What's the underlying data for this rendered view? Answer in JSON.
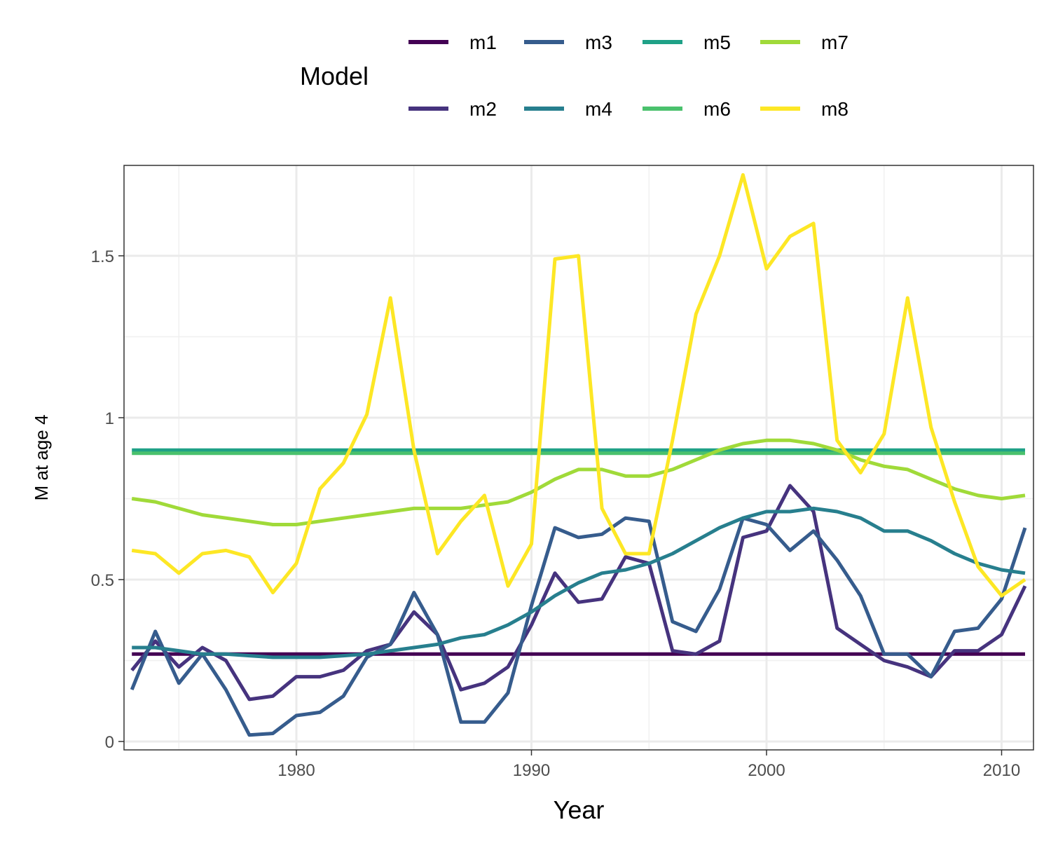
{
  "chart_data": {
    "type": "line",
    "xlabel": "Year",
    "ylabel": "M at age 4",
    "xlim": [
      1973,
      2011
    ],
    "ylim": [
      0,
      1.75
    ],
    "x_ticks": [
      1980,
      1990,
      2000,
      2010
    ],
    "y_ticks": [
      0,
      0.5,
      1,
      1.5
    ],
    "x_tick_labels": [
      "1980",
      "1990",
      "2000",
      "2010"
    ],
    "y_tick_labels": [
      "0",
      "0.5",
      "1",
      "1.5"
    ],
    "grid": true,
    "legend": {
      "title": "Model",
      "position": "top"
    },
    "x": [
      1973,
      1974,
      1975,
      1976,
      1977,
      1978,
      1979,
      1980,
      1981,
      1982,
      1983,
      1984,
      1985,
      1986,
      1987,
      1988,
      1989,
      1990,
      1991,
      1992,
      1993,
      1994,
      1995,
      1996,
      1997,
      1998,
      1999,
      2000,
      2001,
      2002,
      2003,
      2004,
      2005,
      2006,
      2007,
      2008,
      2009,
      2010,
      2011
    ],
    "series": [
      {
        "name": "m1",
        "color": "#440154",
        "values": [
          0.27,
          0.27,
          0.27,
          0.27,
          0.27,
          0.27,
          0.27,
          0.27,
          0.27,
          0.27,
          0.27,
          0.27,
          0.27,
          0.27,
          0.27,
          0.27,
          0.27,
          0.27,
          0.27,
          0.27,
          0.27,
          0.27,
          0.27,
          0.27,
          0.27,
          0.27,
          0.27,
          0.27,
          0.27,
          0.27,
          0.27,
          0.27,
          0.27,
          0.27,
          0.27,
          0.27,
          0.27,
          0.27,
          0.27
        ]
      },
      {
        "name": "m2",
        "color": "#46337E",
        "values": [
          0.22,
          0.31,
          0.23,
          0.29,
          0.25,
          0.13,
          0.14,
          0.2,
          0.2,
          0.22,
          0.28,
          0.3,
          0.4,
          0.33,
          0.16,
          0.18,
          0.23,
          0.36,
          0.52,
          0.43,
          0.44,
          0.57,
          0.55,
          0.28,
          0.27,
          0.31,
          0.63,
          0.65,
          0.79,
          0.71,
          0.35,
          0.3,
          0.25,
          0.23,
          0.2,
          0.28,
          0.28,
          0.33,
          0.48
        ]
      },
      {
        "name": "m3",
        "color": "#365C8D",
        "values": [
          0.16,
          0.34,
          0.18,
          0.27,
          0.16,
          0.02,
          0.025,
          0.08,
          0.09,
          0.14,
          0.26,
          0.3,
          0.46,
          0.33,
          0.06,
          0.06,
          0.15,
          0.42,
          0.66,
          0.63,
          0.64,
          0.69,
          0.68,
          0.37,
          0.34,
          0.47,
          0.69,
          0.67,
          0.59,
          0.65,
          0.56,
          0.45,
          0.27,
          0.27,
          0.2,
          0.34,
          0.35,
          0.44,
          0.66
        ]
      },
      {
        "name": "m4",
        "color": "#277F8E",
        "values": [
          0.29,
          0.29,
          0.28,
          0.27,
          0.27,
          0.265,
          0.26,
          0.26,
          0.26,
          0.265,
          0.27,
          0.28,
          0.29,
          0.3,
          0.32,
          0.33,
          0.36,
          0.4,
          0.45,
          0.49,
          0.52,
          0.53,
          0.55,
          0.58,
          0.62,
          0.66,
          0.69,
          0.71,
          0.71,
          0.72,
          0.71,
          0.69,
          0.65,
          0.65,
          0.62,
          0.58,
          0.55,
          0.53,
          0.52
        ]
      },
      {
        "name": "m5",
        "color": "#1FA187",
        "values": [
          0.9,
          0.9,
          0.9,
          0.9,
          0.9,
          0.9,
          0.9,
          0.9,
          0.9,
          0.9,
          0.9,
          0.9,
          0.9,
          0.9,
          0.9,
          0.9,
          0.9,
          0.9,
          0.9,
          0.9,
          0.9,
          0.9,
          0.9,
          0.9,
          0.9,
          0.9,
          0.9,
          0.9,
          0.9,
          0.9,
          0.9,
          0.9,
          0.9,
          0.9,
          0.9,
          0.9,
          0.9,
          0.9,
          0.9
        ]
      },
      {
        "name": "m6",
        "color": "#4AC16D",
        "values": [
          0.89,
          0.89,
          0.89,
          0.89,
          0.89,
          0.89,
          0.89,
          0.89,
          0.89,
          0.89,
          0.89,
          0.89,
          0.89,
          0.89,
          0.89,
          0.89,
          0.89,
          0.89,
          0.89,
          0.89,
          0.89,
          0.89,
          0.89,
          0.89,
          0.89,
          0.89,
          0.89,
          0.89,
          0.89,
          0.89,
          0.89,
          0.89,
          0.89,
          0.89,
          0.89,
          0.89,
          0.89,
          0.89,
          0.89
        ]
      },
      {
        "name": "m7",
        "color": "#A0DA39",
        "values": [
          0.75,
          0.74,
          0.72,
          0.7,
          0.69,
          0.68,
          0.67,
          0.67,
          0.68,
          0.69,
          0.7,
          0.71,
          0.72,
          0.72,
          0.72,
          0.73,
          0.74,
          0.77,
          0.81,
          0.84,
          0.84,
          0.82,
          0.82,
          0.84,
          0.87,
          0.9,
          0.92,
          0.93,
          0.93,
          0.92,
          0.9,
          0.87,
          0.85,
          0.84,
          0.81,
          0.78,
          0.76,
          0.75,
          0.76
        ]
      },
      {
        "name": "m8",
        "color": "#FDE725",
        "values": [
          0.59,
          0.58,
          0.52,
          0.58,
          0.59,
          0.57,
          0.46,
          0.55,
          0.78,
          0.86,
          1.01,
          1.37,
          0.9,
          0.58,
          0.68,
          0.76,
          0.48,
          0.61,
          1.49,
          1.5,
          0.72,
          0.58,
          0.58,
          0.93,
          1.32,
          1.5,
          1.75,
          1.46,
          1.56,
          1.6,
          0.93,
          0.83,
          0.95,
          1.37,
          0.97,
          0.74,
          0.54,
          0.45,
          0.5
        ]
      }
    ]
  }
}
